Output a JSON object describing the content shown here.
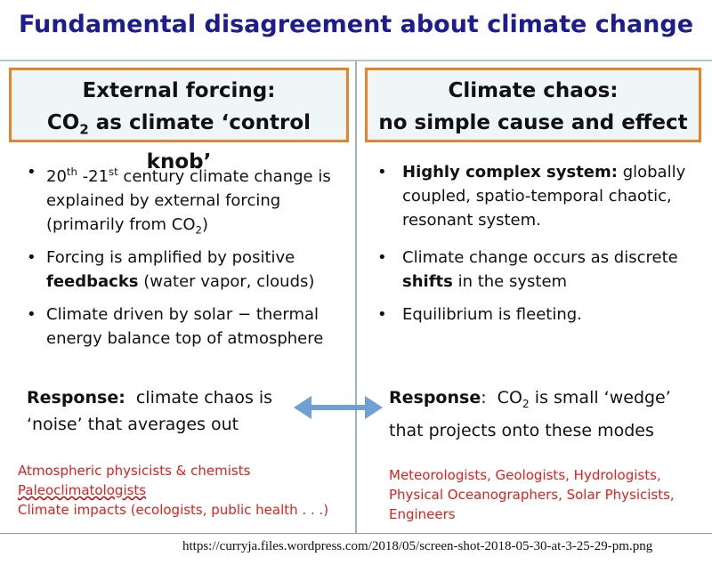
{
  "title": "Fundamental disagreement about climate change",
  "left": {
    "heading": {
      "line1": "External forcing:",
      "line2": [
        "CO",
        "2",
        " as climate ‘control knob’"
      ]
    },
    "bullets": [
      [
        "20",
        "th",
        " -21",
        "st",
        " century climate change is explained by external forcing (primarily from CO",
        "2",
        ")"
      ],
      [
        "Forcing is amplified by positive ",
        "feedbacks",
        " (water vapor, clouds)"
      ],
      [
        "Climate driven by solar − thermal energy balance top of atmosphere"
      ]
    ],
    "response": [
      "Response:",
      "climate chaos is ‘noise’ that averages out"
    ],
    "groups": [
      "Atmospheric physicists & chemists",
      "Paleoclimatologists",
      "Climate impacts (ecologists, public health . . .)"
    ]
  },
  "right": {
    "heading": {
      "line1": "Climate chaos:",
      "line2": [
        "no simple cause and effect"
      ]
    },
    "bullets": [
      [
        "Highly complex system:",
        " globally coupled, spatio-temporal chaotic, resonant system."
      ],
      [
        "Climate change occurs as discrete ",
        "shifts",
        " in the system"
      ],
      [
        "Equilibrium is fleeting."
      ]
    ],
    "response": [
      "Response",
      ":  CO",
      "2",
      " is small ‘wedge’ that projects onto these modes"
    ],
    "groups": [
      "Meteorologists, Geologists, Hydrologists,",
      "Physical Oceanographers, Solar Physicists,",
      "Engineers"
    ]
  },
  "source": "https://curryja.files.wordpress.com/2018/05/screen-shot-2018-05-30-at-3-25-29-pm.png"
}
